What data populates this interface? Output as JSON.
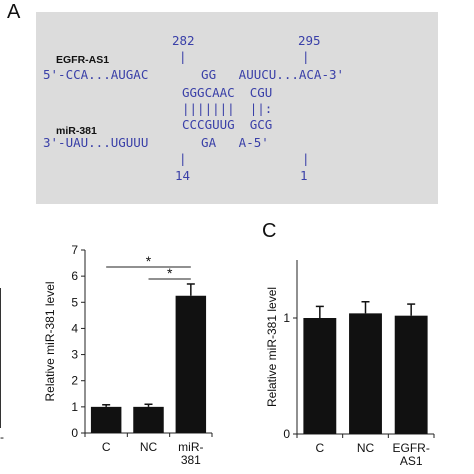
{
  "panel_a": {
    "letter": "A",
    "num_282": "282",
    "num_295": "295",
    "tick_top1": "|",
    "tick_top2": "|",
    "egfr_label": "EGFR-AS1",
    "egfr_seq": "5'-CCA...AUGAC       GG   AUUCU...ACA-3'",
    "upper_pair": "GGGCAAC  CGU",
    "bonds": "|||||||  ||:",
    "lower_pair": "CCCGUUG  GCG",
    "mir_label": "miR-381",
    "mir_seq": "3'-UAU...UGUUU       GA   A-5'",
    "tick_bot1": "|",
    "tick_bot2": "|",
    "num_14": "14",
    "num_1": "1",
    "left_edge_mark": "-"
  },
  "panel_c": {
    "letter": "C"
  },
  "chart_data": [
    {
      "type": "bar",
      "categories": [
        "C",
        "NC",
        "miR-381"
      ],
      "category_lines": [
        [
          "C"
        ],
        [
          "NC"
        ],
        [
          "miR-",
          "381"
        ]
      ],
      "values": [
        1.0,
        1.0,
        5.25
      ],
      "errors": [
        0.08,
        0.1,
        0.45
      ],
      "ylabel": "Relative miR-381 level",
      "ylim": [
        0,
        7
      ],
      "yticks": [
        0,
        1,
        2,
        3,
        4,
        5,
        6,
        7
      ],
      "bar_color": "#111111",
      "significance": [
        {
          "from": 0,
          "to": 2,
          "label": "*"
        },
        {
          "from": 1,
          "to": 2,
          "label": "*"
        }
      ]
    },
    {
      "type": "bar",
      "categories": [
        "C",
        "NC",
        "EGFR-AS1"
      ],
      "category_lines": [
        [
          "C"
        ],
        [
          "NC"
        ],
        [
          "EGFR-",
          "AS1"
        ]
      ],
      "values": [
        1.0,
        1.04,
        1.02
      ],
      "errors": [
        0.1,
        0.1,
        0.1
      ],
      "ylabel": "Relative miR-381 level",
      "ylim": [
        0,
        1.5
      ],
      "yticks": [
        0,
        1
      ],
      "bar_color": "#111111"
    }
  ]
}
